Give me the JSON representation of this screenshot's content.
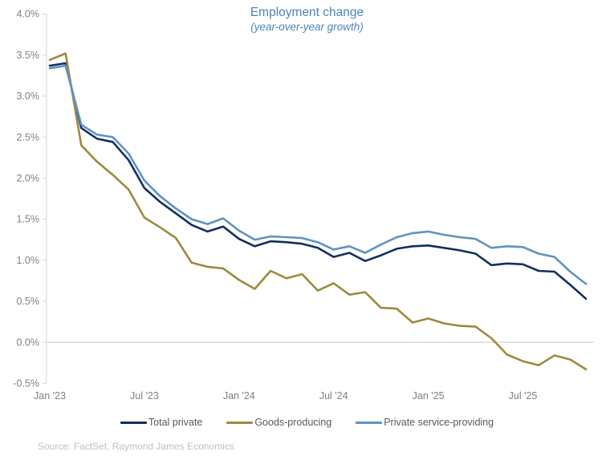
{
  "title": "Employment change",
  "subtitle": "(year-over-year growth)",
  "source": "Source: FactSet, Raymond James Economics",
  "colors": {
    "title_text": "#4d84ba",
    "axis_line": "#d6d6d6",
    "zero_gridline": "#c4c4c4",
    "tick_text": "#808080",
    "legend_text": "#595959",
    "source_text": "#bfbfbf"
  },
  "chart_data": {
    "type": "line",
    "title": "Employment change",
    "subtitle": "(year-over-year growth)",
    "x": [
      "Jan '23",
      "Feb '23",
      "Mar '23",
      "Apr '23",
      "May '23",
      "Jun '23",
      "Jul '23",
      "Aug '23",
      "Sep '23",
      "Oct '23",
      "Nov '23",
      "Dec '23",
      "Jan '24",
      "Feb '24",
      "Mar '24",
      "Apr '24",
      "May '24",
      "Jun '24",
      "Jul '24",
      "Aug '24",
      "Sep '24",
      "Oct '24",
      "Nov '24",
      "Dec '24",
      "Jan '25",
      "Feb '25",
      "Mar '25",
      "Apr '25",
      "May '25",
      "Jun '25",
      "Jul '25",
      "Aug '25",
      "Sep '25",
      "Oct '25",
      "Nov '25"
    ],
    "series": [
      {
        "name": "Total private",
        "color": "#122f5e",
        "values": [
          3.37,
          3.4,
          2.61,
          2.48,
          2.44,
          2.22,
          1.88,
          1.71,
          1.57,
          1.43,
          1.35,
          1.41,
          1.26,
          1.17,
          1.23,
          1.22,
          1.2,
          1.15,
          1.04,
          1.09,
          0.99,
          1.06,
          1.14,
          1.17,
          1.18,
          1.15,
          1.12,
          1.08,
          0.94,
          0.96,
          0.95,
          0.87,
          0.86,
          0.7,
          0.53
        ]
      },
      {
        "name": "Goods-producing",
        "color": "#9d8a3f",
        "values": [
          3.44,
          3.52,
          2.4,
          2.2,
          2.04,
          1.86,
          1.52,
          1.4,
          1.27,
          0.97,
          0.92,
          0.9,
          0.76,
          0.65,
          0.87,
          0.78,
          0.83,
          0.63,
          0.72,
          0.58,
          0.61,
          0.42,
          0.41,
          0.24,
          0.29,
          0.23,
          0.2,
          0.19,
          0.05,
          -0.15,
          -0.23,
          -0.28,
          -0.16,
          -0.21,
          -0.33
        ]
      },
      {
        "name": "Private service-providing",
        "color": "#5f92c2",
        "values": [
          3.34,
          3.37,
          2.65,
          2.53,
          2.5,
          2.3,
          1.97,
          1.78,
          1.63,
          1.5,
          1.44,
          1.51,
          1.36,
          1.25,
          1.29,
          1.28,
          1.27,
          1.22,
          1.13,
          1.17,
          1.09,
          1.19,
          1.28,
          1.33,
          1.35,
          1.31,
          1.28,
          1.26,
          1.15,
          1.17,
          1.16,
          1.08,
          1.04,
          0.86,
          0.71
        ]
      }
    ],
    "y_ticks": {
      "labels": [
        "4.0%",
        "3.5%",
        "3.0%",
        "2.5%",
        "2.0%",
        "1.5%",
        "1.0%",
        "0.5%",
        "0.0%",
        "-0.5%"
      ],
      "values": [
        4.0,
        3.5,
        3.0,
        2.5,
        2.0,
        1.5,
        1.0,
        0.5,
        0.0,
        -0.5
      ]
    },
    "x_ticks": {
      "labels": [
        "Jan '23",
        "Jul '23",
        "Jan '24",
        "Jul '24",
        "Jan '25",
        "Jul '25"
      ],
      "indices": [
        0,
        6,
        12,
        18,
        24,
        30
      ]
    },
    "ylim": [
      -0.5,
      4.0
    ],
    "ylabel": "",
    "xlabel": "",
    "grid": "zero-line-only",
    "legend_position": "bottom"
  },
  "legend": {
    "items": [
      {
        "label": "Total private",
        "color": "#122f5e"
      },
      {
        "label": "Goods-producing",
        "color": "#9d8a3f"
      },
      {
        "label": "Private service-providing",
        "color": "#5f92c2"
      }
    ]
  }
}
